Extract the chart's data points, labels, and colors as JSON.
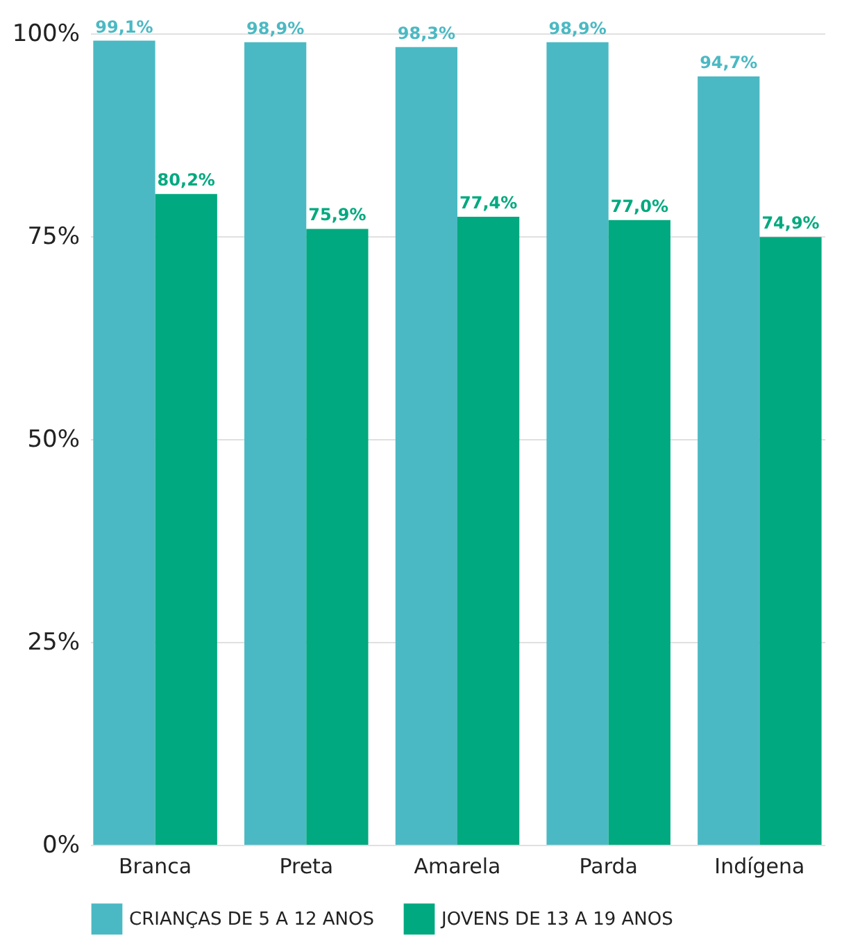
{
  "chart_data": {
    "type": "bar",
    "categories": [
      "Branca",
      "Preta",
      "Amarela",
      "Parda",
      "Indígena"
    ],
    "series": [
      {
        "name": "CRIANÇAS DE 5 A 12 ANOS",
        "color": "#4bb9c3",
        "values": [
          99.1,
          98.9,
          98.3,
          98.9,
          94.7
        ],
        "value_labels": [
          "99,1%",
          "98,9%",
          "98,3%",
          "98,9%",
          "94,7%"
        ]
      },
      {
        "name": "JOVENS DE 13 A 19 ANOS",
        "color": "#00a97f",
        "values": [
          80.2,
          75.9,
          77.4,
          77.0,
          74.9
        ],
        "value_labels": [
          "80,2%",
          "75,9%",
          "77,4%",
          "77,0%",
          "74,9%"
        ]
      }
    ],
    "ylim": [
      0,
      100
    ],
    "yticks": [
      {
        "value": 0,
        "label": "0%"
      },
      {
        "value": 25,
        "label": "25%"
      },
      {
        "value": 50,
        "label": "50%"
      },
      {
        "value": 75,
        "label": "75%"
      },
      {
        "value": 100,
        "label": "100%"
      }
    ],
    "grid": "y",
    "legend": "bottom"
  }
}
